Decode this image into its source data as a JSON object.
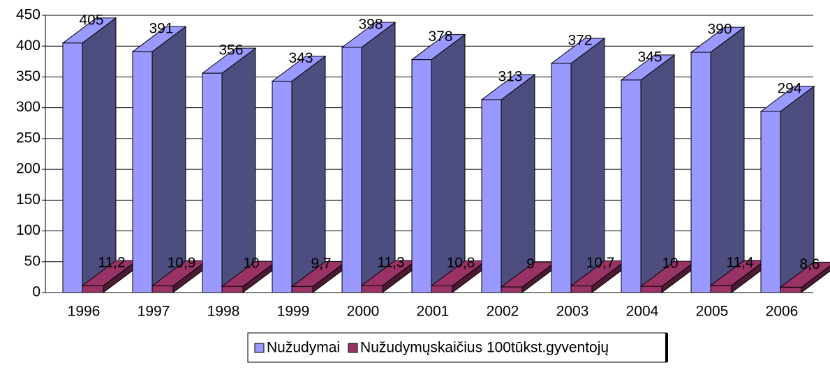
{
  "chart_data": {
    "type": "bar3d",
    "categories": [
      "1996",
      "1997",
      "1998",
      "1999",
      "2000",
      "2001",
      "2002",
      "2003",
      "2004",
      "2005",
      "2006"
    ],
    "series": [
      {
        "name": "Nužudymai",
        "color": "#9999ff",
        "values": [
          405,
          391,
          356,
          343,
          398,
          378,
          313,
          372,
          345,
          390,
          294
        ]
      },
      {
        "name": "Nužudymųskaičius 100tūkst.gyventojų",
        "color": "#993366",
        "values": [
          11.2,
          10.9,
          10,
          9.7,
          11.3,
          10.8,
          9,
          10.7,
          10,
          11.4,
          8.6
        ],
        "value_labels": [
          "11,2",
          "10,9",
          "10",
          "9,7",
          "11,3",
          "10,8",
          "9",
          "10,7",
          "10",
          "11,4",
          "8,6"
        ]
      }
    ],
    "ylim": [
      0,
      450
    ],
    "yticks": [
      0,
      50,
      100,
      150,
      200,
      250,
      300,
      350,
      400,
      450
    ],
    "grid": true,
    "legend": "bottom"
  }
}
